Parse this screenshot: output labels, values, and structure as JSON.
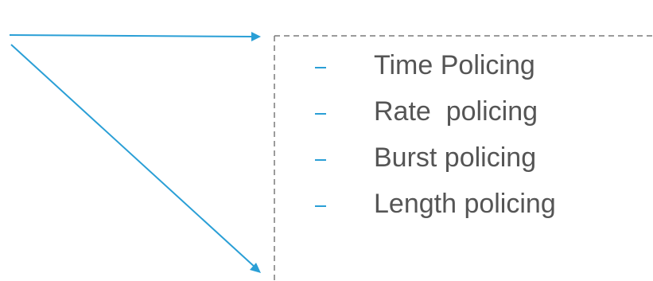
{
  "colors": {
    "arrow": "#2a9fd6",
    "box_border": "#7a7a7a",
    "text": "#555555",
    "bullet": "#2a9fd6"
  },
  "bullet_icon": "dash-icon",
  "items": [
    {
      "label": "Time Policing"
    },
    {
      "label": "Rate  policing"
    },
    {
      "label": "Burst policing"
    },
    {
      "label": "Length policing"
    }
  ]
}
